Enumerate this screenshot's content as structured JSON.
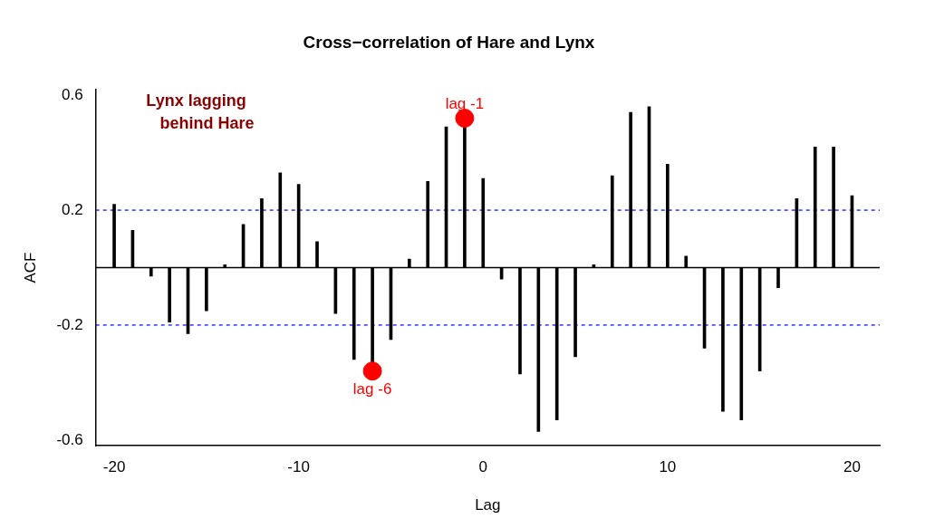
{
  "chart_data": {
    "type": "bar",
    "title": "Cross−correlation of Hare and Lynx",
    "x_label": "Lag",
    "y_label": "ACF",
    "x": [
      -20,
      -19,
      -18,
      -17,
      -16,
      -15,
      -14,
      -13,
      -12,
      -11,
      -10,
      -9,
      -8,
      -7,
      -6,
      -5,
      -4,
      -3,
      -2,
      -1,
      0,
      1,
      2,
      3,
      4,
      5,
      6,
      7,
      8,
      9,
      10,
      11,
      12,
      13,
      14,
      15,
      16,
      17,
      18,
      19,
      20
    ],
    "values": [
      0.22,
      0.13,
      -0.03,
      -0.19,
      -0.23,
      -0.15,
      0.01,
      0.15,
      0.24,
      0.33,
      0.29,
      0.09,
      -0.16,
      -0.32,
      -0.36,
      -0.25,
      0.03,
      0.3,
      0.49,
      0.52,
      0.31,
      -0.04,
      -0.37,
      -0.57,
      -0.53,
      -0.31,
      0.01,
      0.32,
      0.54,
      0.56,
      0.36,
      0.04,
      -0.28,
      -0.5,
      -0.53,
      -0.36,
      -0.07,
      0.24,
      0.42,
      0.42,
      0.25
    ],
    "color": "#000000",
    "xlim": [
      -21,
      21.5
    ],
    "ylim": [
      -0.62,
      0.62
    ],
    "xticks": [
      -20,
      -10,
      0,
      10,
      20
    ],
    "yticks": [
      -0.6,
      -0.2,
      0.2,
      0.6
    ],
    "grid": false,
    "confidence_bounds": [
      -0.2,
      0.2
    ],
    "confidence_color": "#0000ff",
    "highlights": [
      {
        "x": -1,
        "value": 0.52,
        "label": "lag -1"
      },
      {
        "x": -6,
        "value": -0.36,
        "label": "lag -6"
      }
    ],
    "highlight_color": "#ff0000",
    "annotation": {
      "text": [
        "Lynx lagging",
        "behind Hare"
      ],
      "color": "#8b0000"
    }
  }
}
